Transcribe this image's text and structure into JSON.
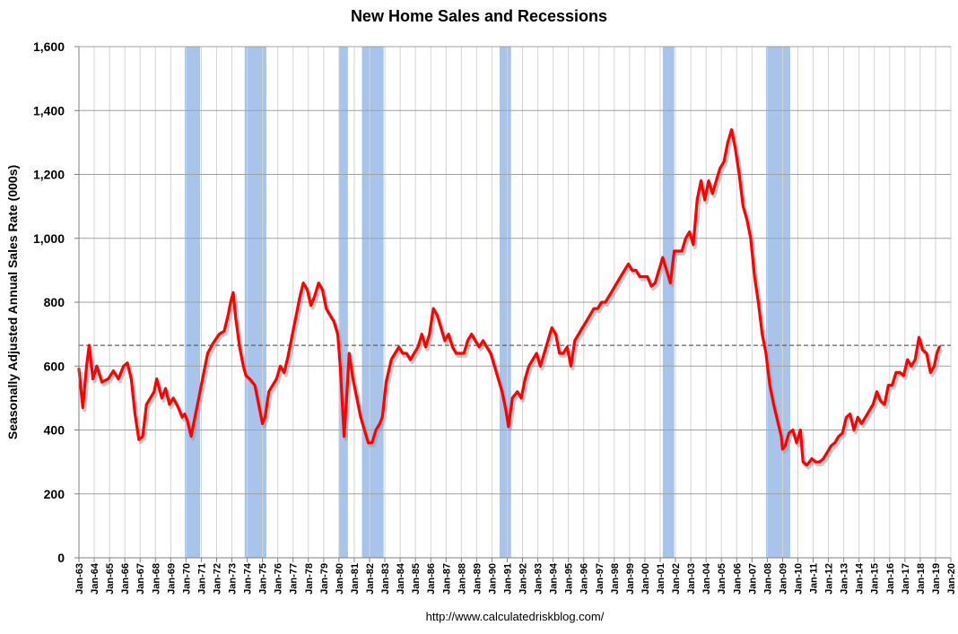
{
  "chart_data": {
    "type": "line",
    "title": "New Home Sales and Recessions",
    "ylabel": "Seasonally Adjusted Annual Sales Rate (000s)",
    "xlabel": "",
    "source": "http://www.calculatedriskblog.com/",
    "ylim": [
      0,
      1600
    ],
    "yticks": [
      0,
      200,
      400,
      600,
      800,
      1000,
      1200,
      1400,
      1600
    ],
    "ytick_labels": [
      "0",
      "200",
      "400",
      "600",
      "800",
      "1,000",
      "1,200",
      "1,400",
      "1,600"
    ],
    "xlim": [
      "1963-01",
      "2020-01"
    ],
    "xtick_labels": [
      "Jan-63",
      "Jan-64",
      "Jan-65",
      "Jan-66",
      "Jan-67",
      "Jan-68",
      "Jan-69",
      "Jan-70",
      "Jan-71",
      "Jan-72",
      "Jan-73",
      "Jan-74",
      "Jan-75",
      "Jan-76",
      "Jan-77",
      "Jan-78",
      "Jan-79",
      "Jan-80",
      "Jan-81",
      "Jan-82",
      "Jan-83",
      "Jan-84",
      "Jan-85",
      "Jan-86",
      "Jan-87",
      "Jan-88",
      "Jan-89",
      "Jan-90",
      "Jan-91",
      "Jan-92",
      "Jan-93",
      "Jan-94",
      "Jan-95",
      "Jan-96",
      "Jan-97",
      "Jan-98",
      "Jan-99",
      "Jan-00",
      "Jan-01",
      "Jan-02",
      "Jan-03",
      "Jan-04",
      "Jan-05",
      "Jan-06",
      "Jan-07",
      "Jan-08",
      "Jan-09",
      "Jan-10",
      "Jan-11",
      "Jan-12",
      "Jan-13",
      "Jan-14",
      "Jan-15",
      "Jan-16",
      "Jan-17",
      "Jan-18",
      "Jan-19",
      "Jan-20"
    ],
    "grid": true,
    "reference_line": {
      "value": 665,
      "style": "dashed"
    },
    "recessions": [
      [
        "1969-12",
        "1970-11"
      ],
      [
        "1973-11",
        "1975-03"
      ],
      [
        "1980-01",
        "1980-07"
      ],
      [
        "1981-07",
        "1982-11"
      ],
      [
        "1990-07",
        "1991-03"
      ],
      [
        "2001-03",
        "2001-11"
      ],
      [
        "2007-12",
        "2009-06"
      ]
    ],
    "series": [
      {
        "color": "#ff0000",
        "points": [
          [
            "1963-01",
            591
          ],
          [
            "1963-04",
            470
          ],
          [
            "1963-07",
            600
          ],
          [
            "1963-09",
            665
          ],
          [
            "1963-12",
            560
          ],
          [
            "1964-03",
            600
          ],
          [
            "1964-07",
            550
          ],
          [
            "1964-12",
            560
          ],
          [
            "1965-04",
            585
          ],
          [
            "1965-08",
            560
          ],
          [
            "1965-12",
            600
          ],
          [
            "1966-03",
            610
          ],
          [
            "1966-06",
            560
          ],
          [
            "1966-09",
            450
          ],
          [
            "1966-12",
            370
          ],
          [
            "1967-03",
            380
          ],
          [
            "1967-06",
            480
          ],
          [
            "1967-09",
            500
          ],
          [
            "1967-12",
            520
          ],
          [
            "1968-02",
            560
          ],
          [
            "1968-06",
            500
          ],
          [
            "1968-09",
            530
          ],
          [
            "1968-12",
            480
          ],
          [
            "1969-03",
            500
          ],
          [
            "1969-07",
            470
          ],
          [
            "1969-10",
            440
          ],
          [
            "1969-12",
            450
          ],
          [
            "1970-02",
            430
          ],
          [
            "1970-05",
            380
          ],
          [
            "1970-08",
            440
          ],
          [
            "1970-11",
            500
          ],
          [
            "1971-02",
            560
          ],
          [
            "1971-06",
            640
          ],
          [
            "1971-10",
            670
          ],
          [
            "1972-03",
            700
          ],
          [
            "1972-07",
            710
          ],
          [
            "1972-10",
            760
          ],
          [
            "1972-12",
            800
          ],
          [
            "1973-02",
            830
          ],
          [
            "1973-04",
            750
          ],
          [
            "1973-07",
            660
          ],
          [
            "1973-10",
            600
          ],
          [
            "1973-12",
            570
          ],
          [
            "1974-03",
            560
          ],
          [
            "1974-07",
            540
          ],
          [
            "1974-10",
            480
          ],
          [
            "1975-01",
            420
          ],
          [
            "1975-03",
            440
          ],
          [
            "1975-06",
            520
          ],
          [
            "1975-09",
            540
          ],
          [
            "1975-12",
            560
          ],
          [
            "1976-03",
            600
          ],
          [
            "1976-06",
            580
          ],
          [
            "1976-09",
            630
          ],
          [
            "1976-12",
            690
          ],
          [
            "1977-03",
            750
          ],
          [
            "1977-06",
            810
          ],
          [
            "1977-09",
            860
          ],
          [
            "1977-12",
            840
          ],
          [
            "1978-03",
            790
          ],
          [
            "1978-06",
            820
          ],
          [
            "1978-09",
            860
          ],
          [
            "1978-12",
            840
          ],
          [
            "1979-03",
            780
          ],
          [
            "1979-06",
            760
          ],
          [
            "1979-09",
            740
          ],
          [
            "1979-12",
            700
          ],
          [
            "1980-02",
            600
          ],
          [
            "1980-05",
            380
          ],
          [
            "1980-07",
            500
          ],
          [
            "1980-09",
            640
          ],
          [
            "1980-12",
            560
          ],
          [
            "1981-03",
            500
          ],
          [
            "1981-06",
            440
          ],
          [
            "1981-09",
            400
          ],
          [
            "1981-12",
            360
          ],
          [
            "1982-03",
            360
          ],
          [
            "1982-06",
            400
          ],
          [
            "1982-09",
            420
          ],
          [
            "1982-11",
            440
          ],
          [
            "1983-02",
            550
          ],
          [
            "1983-06",
            620
          ],
          [
            "1983-09",
            640
          ],
          [
            "1983-12",
            660
          ],
          [
            "1984-03",
            640
          ],
          [
            "1984-06",
            640
          ],
          [
            "1984-09",
            620
          ],
          [
            "1984-12",
            640
          ],
          [
            "1985-03",
            660
          ],
          [
            "1985-06",
            700
          ],
          [
            "1985-09",
            660
          ],
          [
            "1985-12",
            700
          ],
          [
            "1986-03",
            780
          ],
          [
            "1986-06",
            760
          ],
          [
            "1986-09",
            720
          ],
          [
            "1986-12",
            680
          ],
          [
            "1987-03",
            700
          ],
          [
            "1987-06",
            660
          ],
          [
            "1987-09",
            640
          ],
          [
            "1987-12",
            640
          ],
          [
            "1988-03",
            640
          ],
          [
            "1988-06",
            680
          ],
          [
            "1988-09",
            700
          ],
          [
            "1988-12",
            680
          ],
          [
            "1989-03",
            660
          ],
          [
            "1989-06",
            680
          ],
          [
            "1989-09",
            660
          ],
          [
            "1989-12",
            640
          ],
          [
            "1990-03",
            600
          ],
          [
            "1990-06",
            560
          ],
          [
            "1990-09",
            520
          ],
          [
            "1990-12",
            460
          ],
          [
            "1991-02",
            410
          ],
          [
            "1991-05",
            500
          ],
          [
            "1991-09",
            520
          ],
          [
            "1991-12",
            500
          ],
          [
            "1992-03",
            560
          ],
          [
            "1992-06",
            600
          ],
          [
            "1992-09",
            620
          ],
          [
            "1992-12",
            640
          ],
          [
            "1993-03",
            600
          ],
          [
            "1993-06",
            640
          ],
          [
            "1993-09",
            680
          ],
          [
            "1993-12",
            720
          ],
          [
            "1994-03",
            700
          ],
          [
            "1994-06",
            640
          ],
          [
            "1994-09",
            640
          ],
          [
            "1994-12",
            660
          ],
          [
            "1995-03",
            600
          ],
          [
            "1995-06",
            680
          ],
          [
            "1995-09",
            700
          ],
          [
            "1995-12",
            720
          ],
          [
            "1996-03",
            740
          ],
          [
            "1996-06",
            760
          ],
          [
            "1996-09",
            780
          ],
          [
            "1996-12",
            780
          ],
          [
            "1997-03",
            800
          ],
          [
            "1997-06",
            800
          ],
          [
            "1997-09",
            820
          ],
          [
            "1997-12",
            840
          ],
          [
            "1998-03",
            860
          ],
          [
            "1998-06",
            880
          ],
          [
            "1998-09",
            900
          ],
          [
            "1998-12",
            920
          ],
          [
            "1999-03",
            900
          ],
          [
            "1999-06",
            900
          ],
          [
            "1999-09",
            880
          ],
          [
            "1999-12",
            880
          ],
          [
            "2000-03",
            880
          ],
          [
            "2000-06",
            850
          ],
          [
            "2000-09",
            860
          ],
          [
            "2000-12",
            900
          ],
          [
            "2001-03",
            940
          ],
          [
            "2001-06",
            900
          ],
          [
            "2001-09",
            860
          ],
          [
            "2001-12",
            960
          ],
          [
            "2002-03",
            960
          ],
          [
            "2002-06",
            960
          ],
          [
            "2002-09",
            1000
          ],
          [
            "2002-12",
            1020
          ],
          [
            "2003-03",
            980
          ],
          [
            "2003-06",
            1120
          ],
          [
            "2003-09",
            1180
          ],
          [
            "2003-12",
            1120
          ],
          [
            "2004-03",
            1180
          ],
          [
            "2004-06",
            1140
          ],
          [
            "2004-09",
            1180
          ],
          [
            "2004-12",
            1220
          ],
          [
            "2005-03",
            1240
          ],
          [
            "2005-06",
            1300
          ],
          [
            "2005-09",
            1340
          ],
          [
            "2005-12",
            1280
          ],
          [
            "2006-03",
            1200
          ],
          [
            "2006-06",
            1100
          ],
          [
            "2006-09",
            1060
          ],
          [
            "2006-12",
            1000
          ],
          [
            "2007-03",
            880
          ],
          [
            "2007-06",
            800
          ],
          [
            "2007-09",
            700
          ],
          [
            "2007-12",
            640
          ],
          [
            "2008-03",
            540
          ],
          [
            "2008-06",
            480
          ],
          [
            "2008-09",
            430
          ],
          [
            "2008-12",
            380
          ],
          [
            "2009-01",
            340
          ],
          [
            "2009-03",
            350
          ],
          [
            "2009-06",
            390
          ],
          [
            "2009-09",
            400
          ],
          [
            "2009-12",
            360
          ],
          [
            "2010-03",
            400
          ],
          [
            "2010-05",
            300
          ],
          [
            "2010-08",
            290
          ],
          [
            "2010-12",
            310
          ],
          [
            "2011-03",
            300
          ],
          [
            "2011-06",
            300
          ],
          [
            "2011-09",
            310
          ],
          [
            "2011-12",
            330
          ],
          [
            "2012-03",
            350
          ],
          [
            "2012-06",
            360
          ],
          [
            "2012-09",
            380
          ],
          [
            "2012-12",
            390
          ],
          [
            "2013-03",
            440
          ],
          [
            "2013-06",
            450
          ],
          [
            "2013-09",
            400
          ],
          [
            "2013-12",
            440
          ],
          [
            "2014-03",
            420
          ],
          [
            "2014-06",
            440
          ],
          [
            "2014-09",
            460
          ],
          [
            "2014-12",
            480
          ],
          [
            "2015-03",
            520
          ],
          [
            "2015-06",
            490
          ],
          [
            "2015-09",
            480
          ],
          [
            "2015-12",
            540
          ],
          [
            "2016-03",
            540
          ],
          [
            "2016-06",
            580
          ],
          [
            "2016-09",
            580
          ],
          [
            "2016-12",
            570
          ],
          [
            "2017-03",
            620
          ],
          [
            "2017-06",
            600
          ],
          [
            "2017-09",
            620
          ],
          [
            "2017-12",
            690
          ],
          [
            "2018-03",
            650
          ],
          [
            "2018-06",
            640
          ],
          [
            "2018-09",
            580
          ],
          [
            "2018-12",
            600
          ],
          [
            "2019-02",
            640
          ],
          [
            "2019-04",
            660
          ]
        ]
      }
    ]
  }
}
